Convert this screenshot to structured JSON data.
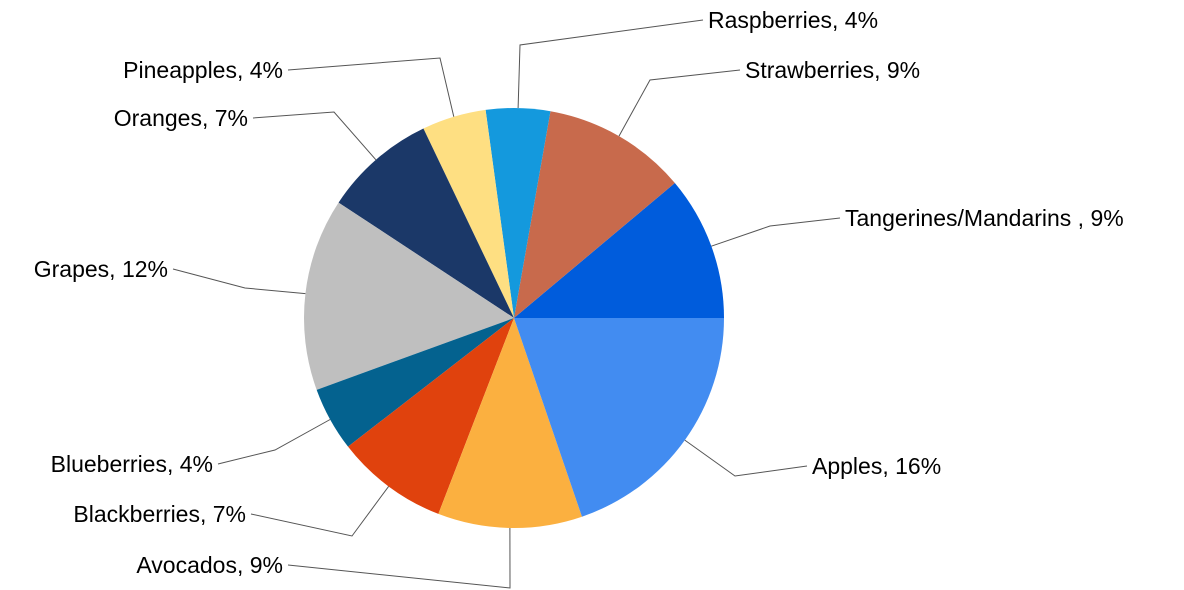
{
  "chart_data": {
    "type": "pie",
    "title": "",
    "slices": [
      {
        "name": "Tangerines/Mandarins ",
        "value": 9,
        "label": "Tangerines/Mandarins , 9%",
        "color": "#005cdc"
      },
      {
        "name": "Strawberries",
        "value": 9,
        "label": "Strawberries, 9%",
        "color": "#c86a4c"
      },
      {
        "name": "Raspberries",
        "value": 4,
        "label": "Raspberries, 4%",
        "color": "#1499dd"
      },
      {
        "name": "Pineapples",
        "value": 4,
        "label": "Pineapples, 4%",
        "color": "#fedf82"
      },
      {
        "name": "Oranges",
        "value": 7,
        "label": "Oranges, 7%",
        "color": "#1b3868"
      },
      {
        "name": "Grapes",
        "value": 12,
        "label": "Grapes, 12%",
        "color": "#bfbfbf"
      },
      {
        "name": "Blueberries",
        "value": 4,
        "label": "Blueberries, 4%",
        "color": "#04628f"
      },
      {
        "name": "Blackberries",
        "value": 7,
        "label": "Blackberries, 7%",
        "color": "#e0420d"
      },
      {
        "name": "Avocados",
        "value": 9,
        "label": "Avocados, 9%",
        "color": "#fbb040"
      },
      {
        "name": "Apples",
        "value": 16,
        "label": "Apples, 16%",
        "color": "#428cf1"
      }
    ],
    "legend": "none"
  }
}
